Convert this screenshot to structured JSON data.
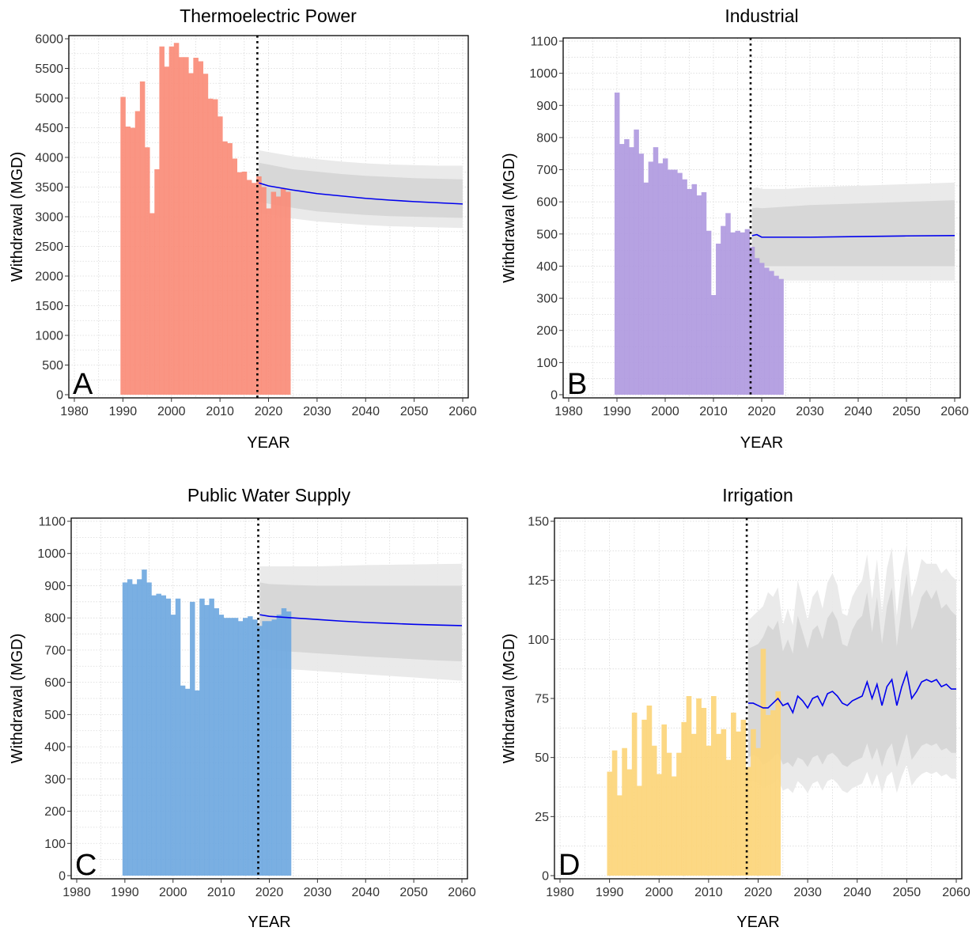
{
  "chart_data": [
    {
      "type": "bar",
      "panel_letter": "A",
      "title": "Thermoelectric Power",
      "xlabel": "YEAR",
      "ylabel": "Withdrawal (MGD)",
      "xlim": [
        1980,
        2060
      ],
      "ylim": [
        0,
        6000
      ],
      "xticks": [
        1980,
        1990,
        2000,
        2010,
        2020,
        2030,
        2040,
        2050,
        2060
      ],
      "yticks": [
        0,
        500,
        1000,
        1500,
        2000,
        2500,
        3000,
        3500,
        4000,
        4500,
        5000,
        5500,
        6000
      ],
      "historical_color": "#fa8c78",
      "historical_years": [
        1990,
        1991,
        1992,
        1993,
        1994,
        1995,
        1996,
        1997,
        1998,
        1999,
        2000,
        2001,
        2002,
        2003,
        2004,
        2005,
        2006,
        2007,
        2008,
        2009,
        2010,
        2011,
        2012,
        2013,
        2014,
        2015,
        2016,
        2017,
        2018,
        2019,
        2020,
        2021,
        2022,
        2023,
        2024
      ],
      "historical_values": [
        5020,
        4520,
        4500,
        4780,
        5280,
        4170,
        3060,
        3800,
        5870,
        5530,
        5870,
        5930,
        5690,
        5690,
        5420,
        5680,
        5620,
        5410,
        4990,
        4980,
        4690,
        4270,
        4240,
        3980,
        3750,
        3760,
        3620,
        3570,
        3680,
        3500,
        3140,
        3420,
        3340,
        3470,
        3420
      ],
      "forecast_start": 2018,
      "forecast_years": [
        2018,
        2020,
        2025,
        2030,
        2035,
        2040,
        2045,
        2050,
        2055,
        2060
      ],
      "forecast_median": [
        3570,
        3520,
        3450,
        3390,
        3350,
        3310,
        3280,
        3255,
        3235,
        3215
      ],
      "band_inner_upper": [
        3910,
        3880,
        3800,
        3760,
        3720,
        3690,
        3670,
        3650,
        3640,
        3630
      ],
      "band_inner_lower": [
        3250,
        3220,
        3150,
        3090,
        3060,
        3030,
        3010,
        3000,
        2990,
        2980
      ],
      "band_outer_upper": [
        4120,
        4090,
        4020,
        3970,
        3930,
        3900,
        3880,
        3870,
        3860,
        3860
      ],
      "band_outer_lower": [
        3070,
        3040,
        2970,
        2920,
        2890,
        2860,
        2840,
        2830,
        2820,
        2810
      ],
      "forecast_color": "#0000ee"
    },
    {
      "type": "bar",
      "panel_letter": "B",
      "title": "Industrial",
      "xlabel": "YEAR",
      "ylabel": "Withdrawal (MGD)",
      "xlim": [
        1980,
        2060
      ],
      "ylim": [
        0,
        1100
      ],
      "xticks": [
        1980,
        1990,
        2000,
        2010,
        2020,
        2030,
        2040,
        2050,
        2060
      ],
      "yticks": [
        0,
        100,
        200,
        300,
        400,
        500,
        600,
        700,
        800,
        900,
        1000,
        1100
      ],
      "historical_color": "#b09ae0",
      "historical_years": [
        1990,
        1991,
        1992,
        1993,
        1994,
        1995,
        1996,
        1997,
        1998,
        1999,
        2000,
        2001,
        2002,
        2003,
        2004,
        2005,
        2006,
        2007,
        2008,
        2009,
        2010,
        2011,
        2012,
        2013,
        2014,
        2015,
        2016,
        2017,
        2018,
        2019,
        2020,
        2021,
        2022,
        2023,
        2024
      ],
      "historical_values": [
        940,
        780,
        795,
        770,
        825,
        750,
        660,
        725,
        770,
        720,
        735,
        700,
        700,
        690,
        670,
        640,
        655,
        620,
        630,
        510,
        310,
        470,
        525,
        565,
        505,
        510,
        505,
        515,
        460,
        425,
        410,
        395,
        385,
        370,
        360
      ],
      "forecast_start": 2018,
      "forecast_years": [
        2018,
        2019,
        2020,
        2025,
        2030,
        2040,
        2050,
        2060
      ],
      "forecast_median": [
        495,
        498,
        490,
        490,
        490,
        492,
        494,
        495
      ],
      "band_inner_upper": [
        580,
        582,
        580,
        585,
        590,
        595,
        600,
        605
      ],
      "band_inner_lower": [
        405,
        405,
        400,
        400,
        400,
        400,
        400,
        400
      ],
      "band_outer_upper": [
        640,
        645,
        640,
        640,
        645,
        650,
        655,
        660
      ],
      "band_outer_lower": [
        360,
        360,
        355,
        355,
        355,
        355,
        355,
        355
      ],
      "forecast_color": "#0000ee"
    },
    {
      "type": "bar",
      "panel_letter": "C",
      "title": "Public Water Supply",
      "xlabel": "YEAR",
      "ylabel": "Withdrawal (MGD)",
      "xlim": [
        1980,
        2060
      ],
      "ylim": [
        0,
        1100
      ],
      "xticks": [
        1980,
        1990,
        2000,
        2010,
        2020,
        2030,
        2040,
        2050,
        2060
      ],
      "yticks": [
        0,
        100,
        200,
        300,
        400,
        500,
        600,
        700,
        800,
        900,
        1000,
        1100
      ],
      "historical_color": "#6fa8e0",
      "historical_years": [
        1990,
        1991,
        1992,
        1993,
        1994,
        1995,
        1996,
        1997,
        1998,
        1999,
        2000,
        2001,
        2002,
        2003,
        2004,
        2005,
        2006,
        2007,
        2008,
        2009,
        2010,
        2011,
        2012,
        2013,
        2014,
        2015,
        2016,
        2017,
        2018,
        2019,
        2020,
        2021,
        2022,
        2023,
        2024
      ],
      "historical_values": [
        910,
        920,
        905,
        920,
        950,
        910,
        870,
        875,
        870,
        860,
        810,
        860,
        590,
        580,
        850,
        575,
        860,
        840,
        860,
        830,
        810,
        800,
        800,
        800,
        790,
        800,
        805,
        795,
        775,
        790,
        790,
        795,
        810,
        830,
        820
      ],
      "forecast_start": 2018,
      "forecast_years": [
        2018,
        2020,
        2025,
        2030,
        2035,
        2040,
        2045,
        2050,
        2055,
        2060
      ],
      "forecast_median": [
        810,
        805,
        800,
        795,
        790,
        786,
        783,
        780,
        778,
        776
      ],
      "band_inner_upper": [
        910,
        905,
        902,
        900,
        900,
        900,
        900,
        900,
        900,
        900
      ],
      "band_inner_lower": [
        705,
        700,
        695,
        690,
        685,
        680,
        676,
        672,
        668,
        665
      ],
      "band_outer_upper": [
        960,
        960,
        960,
        960,
        962,
        964,
        965,
        966,
        967,
        968
      ],
      "band_outer_lower": [
        650,
        645,
        640,
        635,
        630,
        625,
        620,
        615,
        610,
        605
      ],
      "forecast_color": "#0000ee"
    },
    {
      "type": "bar",
      "panel_letter": "D",
      "title": "Irrigation",
      "xlabel": "YEAR",
      "ylabel": "Withdrawal (MGD)",
      "xlim": [
        1980,
        2060
      ],
      "ylim": [
        0,
        150
      ],
      "xticks": [
        1980,
        1990,
        2000,
        2010,
        2020,
        2030,
        2040,
        2050,
        2060
      ],
      "yticks": [
        0,
        25,
        50,
        75,
        100,
        125,
        150
      ],
      "historical_color": "#fcd57a",
      "historical_years": [
        1990,
        1991,
        1992,
        1993,
        1994,
        1995,
        1996,
        1997,
        1998,
        1999,
        2000,
        2001,
        2002,
        2003,
        2004,
        2005,
        2006,
        2007,
        2008,
        2009,
        2010,
        2011,
        2012,
        2013,
        2014,
        2015,
        2016,
        2017,
        2018,
        2019,
        2020,
        2021,
        2022,
        2023,
        2024
      ],
      "historical_values": [
        44,
        53,
        34,
        54,
        45,
        69,
        38,
        66,
        72,
        55,
        43,
        64,
        52,
        42,
        52,
        65,
        76,
        60,
        75,
        71,
        55,
        76,
        60,
        62,
        49,
        69,
        61,
        66,
        46,
        62,
        54,
        96,
        68,
        70,
        78
      ],
      "forecast_start": 2018,
      "forecast_years": [
        2018,
        2019,
        2020,
        2021,
        2022,
        2023,
        2024,
        2025,
        2026,
        2027,
        2028,
        2029,
        2030,
        2031,
        2032,
        2033,
        2034,
        2035,
        2036,
        2037,
        2038,
        2039,
        2040,
        2041,
        2042,
        2043,
        2044,
        2045,
        2046,
        2047,
        2048,
        2049,
        2050,
        2051,
        2052,
        2053,
        2054,
        2055,
        2056,
        2057,
        2058,
        2059,
        2060
      ],
      "forecast_median": [
        73,
        73,
        72,
        71,
        71,
        73,
        75,
        72,
        73,
        69,
        76,
        74,
        71,
        75,
        76,
        72,
        77,
        78,
        76,
        73,
        72,
        74,
        75,
        76,
        82,
        75,
        81,
        72,
        80,
        83,
        72,
        80,
        86,
        75,
        78,
        82,
        83,
        82,
        83,
        80,
        81,
        79,
        79
      ],
      "band_inner_upper": [
        96,
        97,
        98,
        101,
        106,
        104,
        108,
        95,
        100,
        94,
        110,
        103,
        96,
        104,
        106,
        100,
        109,
        112,
        108,
        98,
        97,
        104,
        108,
        110,
        120,
        103,
        118,
        98,
        114,
        122,
        97,
        114,
        128,
        104,
        110,
        118,
        121,
        117,
        121,
        113,
        115,
        112,
        110
      ],
      "band_inner_lower": [
        50,
        51,
        50,
        47,
        48,
        50,
        52,
        47,
        48,
        46,
        50,
        49,
        46,
        50,
        51,
        47,
        51,
        52,
        50,
        47,
        46,
        48,
        49,
        50,
        56,
        49,
        54,
        46,
        53,
        56,
        46,
        53,
        60,
        49,
        52,
        55,
        56,
        55,
        56,
        53,
        54,
        52,
        52
      ],
      "band_outer_upper": [
        108,
        110,
        112,
        114,
        120,
        118,
        122,
        106,
        113,
        106,
        125,
        117,
        108,
        118,
        121,
        113,
        124,
        128,
        123,
        111,
        110,
        118,
        122,
        125,
        136,
        117,
        134,
        111,
        130,
        139,
        110,
        129,
        140,
        118,
        125,
        134,
        132,
        132,
        132,
        128,
        130,
        127,
        125
      ],
      "band_outer_lower": [
        40,
        40,
        39,
        37,
        38,
        39,
        41,
        36,
        37,
        35,
        40,
        38,
        35,
        39,
        40,
        36,
        40,
        41,
        39,
        36,
        35,
        37,
        38,
        39,
        44,
        38,
        43,
        35,
        42,
        44,
        35,
        42,
        47,
        38,
        41,
        43,
        44,
        43,
        44,
        42,
        43,
        41,
        41
      ],
      "forecast_color": "#0000ee"
    }
  ]
}
